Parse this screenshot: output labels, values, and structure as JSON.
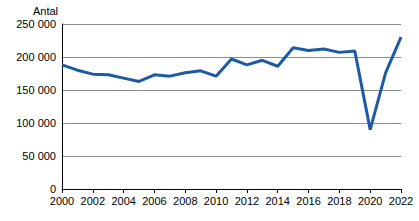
{
  "chart_data": {
    "type": "line",
    "y_label": "Antal",
    "x": [
      2000,
      2001,
      2002,
      2003,
      2004,
      2005,
      2006,
      2007,
      2008,
      2009,
      2010,
      2011,
      2012,
      2013,
      2014,
      2015,
      2016,
      2017,
      2018,
      2019,
      2020,
      2021,
      2022
    ],
    "values": [
      188000,
      180000,
      174000,
      173000,
      168000,
      163000,
      173000,
      171000,
      176000,
      179000,
      171000,
      197000,
      188000,
      195000,
      186000,
      214000,
      210000,
      212000,
      207000,
      209000,
      90000,
      176000,
      230000
    ],
    "color": "#1c5aa6",
    "xlim": [
      2000,
      2022
    ],
    "xticks": [
      2000,
      2002,
      2004,
      2006,
      2008,
      2010,
      2012,
      2014,
      2016,
      2018,
      2020,
      2022
    ],
    "ylim": [
      0,
      250000
    ],
    "yticks": [
      0,
      {
        "value": 50000,
        "label": "50 000"
      },
      {
        "value": 100000,
        "label": "100 000"
      },
      {
        "value": 150000,
        "label": "150 000"
      },
      {
        "value": 200000,
        "label": "200 000"
      },
      {
        "value": 250000,
        "label": "250 000"
      }
    ],
    "grid": true
  }
}
